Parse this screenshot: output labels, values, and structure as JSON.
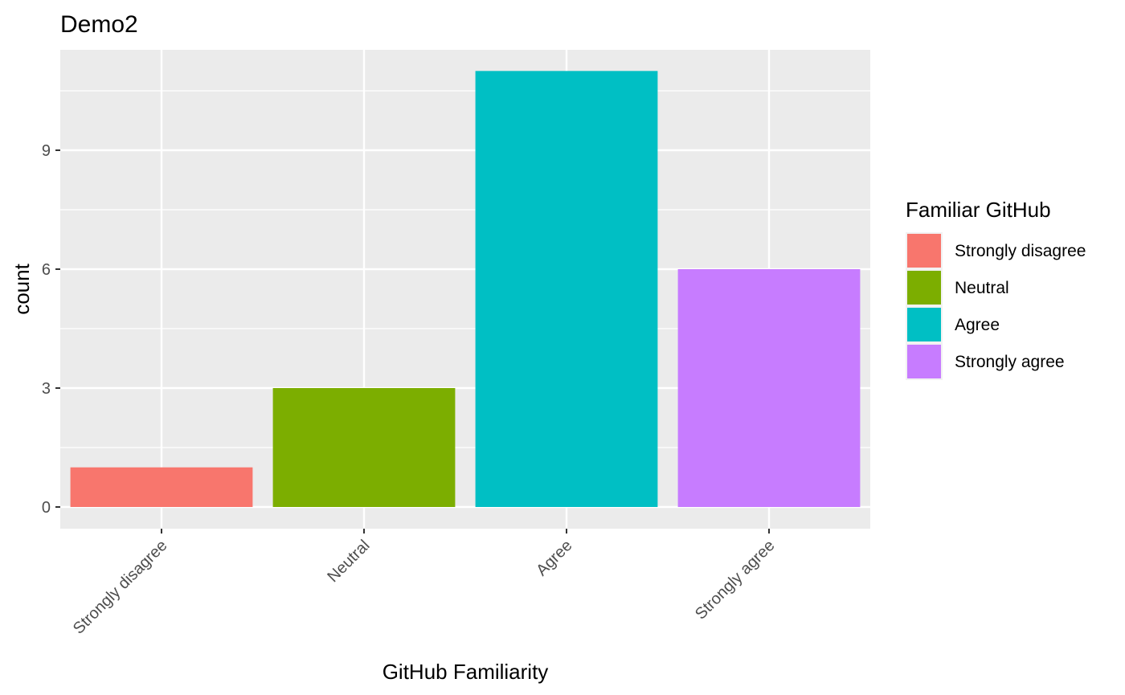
{
  "chart_data": {
    "type": "bar",
    "title": "Demo2",
    "xlabel": "GitHub Familiarity",
    "ylabel": "count",
    "categories": [
      "Strongly disagree",
      "Neutral",
      "Agree",
      "Strongly agree"
    ],
    "values": [
      1,
      3,
      11,
      6
    ],
    "colors": [
      "#F8766D",
      "#7CAE00",
      "#00BFC4",
      "#C77CFF"
    ],
    "ylim": [
      0,
      11.5
    ],
    "yticks": [
      0,
      3,
      6,
      9
    ],
    "ytick_labels": [
      "0",
      "3",
      "6",
      "9"
    ],
    "grid": true,
    "legend": {
      "title": "Familiar GitHub",
      "position": "right",
      "entries": [
        "Strongly disagree",
        "Neutral",
        "Agree",
        "Strongly agree"
      ]
    },
    "background": "#EBEBEB"
  }
}
